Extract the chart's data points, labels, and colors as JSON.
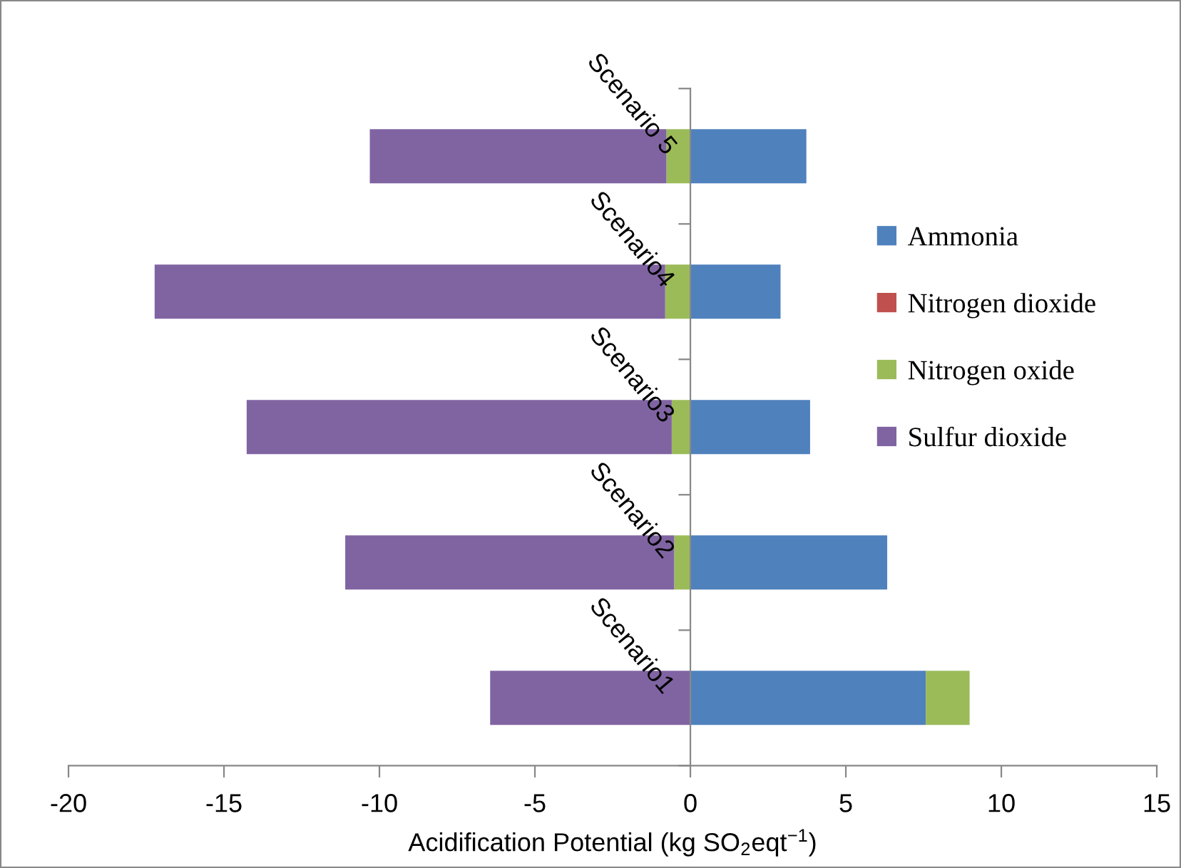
{
  "chart_data": {
    "type": "bar",
    "orientation": "horizontal",
    "stacked": true,
    "categories": [
      "Scenario 5",
      "Scenario4",
      "Scenario3",
      "Scenario2",
      "Scenario1"
    ],
    "series": [
      {
        "name": "Ammonia",
        "color": "#4f81bd",
        "values": [
          3.73,
          2.9,
          3.85,
          6.33,
          7.57
        ]
      },
      {
        "name": "Nitrogen dioxide",
        "color": "#c0504d",
        "values": [
          0,
          0,
          0,
          0,
          0
        ]
      },
      {
        "name": "Nitrogen oxide",
        "color": "#9bbb59",
        "values": [
          -0.77,
          -0.81,
          -0.6,
          -0.52,
          1.41
        ]
      },
      {
        "name": "Sulfur dioxide",
        "color": "#8064a2",
        "values": [
          -9.54,
          -16.42,
          -13.67,
          -10.58,
          -6.44
        ]
      }
    ],
    "xlabel": "Acidification Potential (kg SO$_{2}$eqt$^{−1}$)",
    "xlim": [
      -20,
      15
    ],
    "xticks": [
      -20,
      -15,
      -10,
      -5,
      0,
      5,
      10,
      15
    ],
    "grid": false,
    "legend": "right"
  }
}
